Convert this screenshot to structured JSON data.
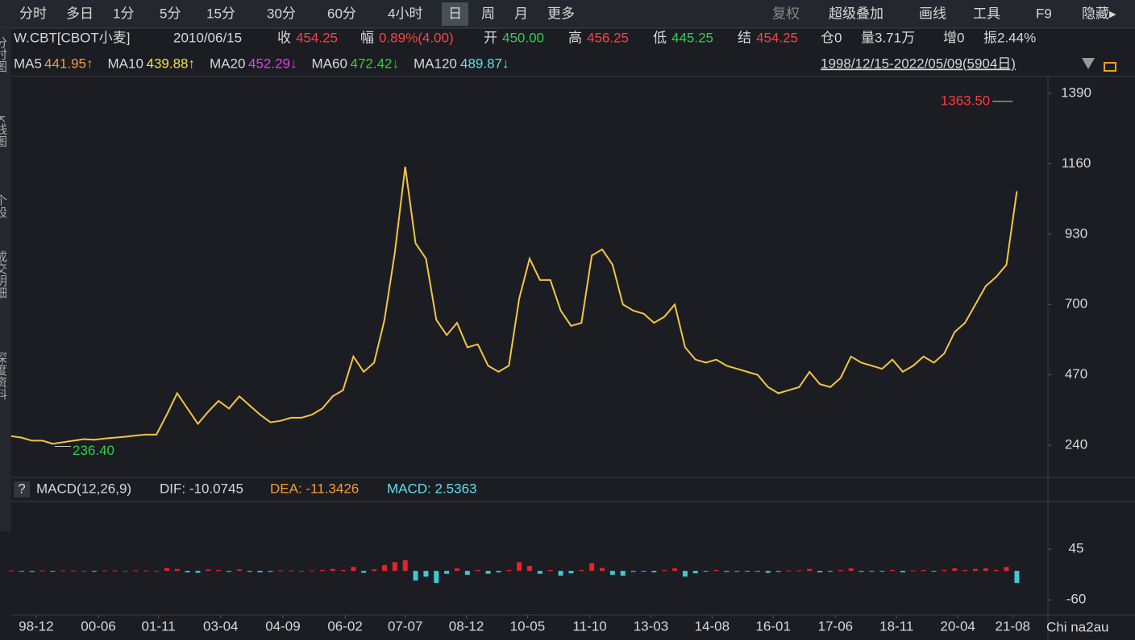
{
  "toolbar": {
    "left": [
      "分时",
      "多日",
      "1分",
      "5分",
      "15分",
      "30分",
      "60分",
      "4小时",
      "日",
      "周",
      "月",
      "更多"
    ],
    "selected": "日",
    "right": [
      "复权",
      "超级叠加",
      "画线",
      "工具",
      "F9",
      "隐藏▸"
    ]
  },
  "sidebar": [
    "分时图",
    "K线图",
    "个股",
    "成交明细",
    "深度资料"
  ],
  "info": {
    "symbol": "W.CBT[CBOT小麦]",
    "date": "2010/06/15",
    "close_label": "收",
    "close": "454.25",
    "change_label": "幅",
    "change": "0.89%(4.00)",
    "open_label": "开",
    "open": "450.00",
    "high_label": "高",
    "high": "456.25",
    "low_label": "低",
    "low": "445.25",
    "settle_label": "结",
    "settle": "454.25",
    "oi": "仓0",
    "volume": "量3.71万",
    "oi_change": "增0",
    "amplitude": "振2.44%"
  },
  "ma": [
    {
      "name": "MA5",
      "value": "441.95↑",
      "color": "#f39c32"
    },
    {
      "name": "MA10",
      "value": "439.88↑",
      "color": "#f5e23a"
    },
    {
      "name": "MA20",
      "value": "452.29↓",
      "color": "#e040e8"
    },
    {
      "name": "MA60",
      "value": "472.42↓",
      "color": "#3cc83c"
    },
    {
      "name": "MA120",
      "value": "489.87↓",
      "color": "#5fe0ee"
    }
  ],
  "range": "1998/12/15-2022/05/09(5904日)",
  "macd_header": {
    "help": "?",
    "name": "MACD(12,26,9)",
    "dif": "DIF: -10.0745",
    "dea": "DEA: -11.3426",
    "macd": "MACD: 2.5363"
  },
  "watermark": "Chi na2au",
  "chart_data": [
    {
      "type": "line",
      "xlim": [
        0,
        100
      ],
      "ylim": [
        143,
        1445
      ],
      "yticks": [
        240,
        470,
        700,
        930,
        1160,
        1390
      ],
      "xticks": [
        {
          "value": 2.4,
          "label": "98-12"
        },
        {
          "value": 8.4,
          "label": "00-06"
        },
        {
          "value": 14.2,
          "label": "01-11"
        },
        {
          "value": 20.2,
          "label": "03-04"
        },
        {
          "value": 26.2,
          "label": "04-09"
        },
        {
          "value": 32.2,
          "label": "06-02"
        },
        {
          "value": 38.0,
          "label": "07-07"
        },
        {
          "value": 43.9,
          "label": "08-12"
        },
        {
          "value": 49.8,
          "label": "10-05"
        },
        {
          "value": 55.8,
          "label": "11-10"
        },
        {
          "value": 61.7,
          "label": "13-03"
        },
        {
          "value": 67.6,
          "label": "14-08"
        },
        {
          "value": 73.5,
          "label": "16-01"
        },
        {
          "value": 79.5,
          "label": "17-06"
        },
        {
          "value": 85.4,
          "label": "18-11"
        },
        {
          "value": 91.3,
          "label": "20-04"
        },
        {
          "value": 96.6,
          "label": "21-08"
        }
      ],
      "annotations": [
        {
          "text": "1363.50",
          "x": 96.6,
          "value": 1363.5,
          "color": "#ff3b3b"
        },
        {
          "text": "236.40",
          "x": 4.2,
          "value": 236.4,
          "color": "#2fcf4a"
        }
      ],
      "series": [
        {
          "color": "#f5c542",
          "x": [
            0,
            1,
            2,
            3,
            4,
            5,
            6,
            7,
            8,
            9,
            10,
            11,
            12,
            13,
            14,
            15,
            16,
            17,
            18,
            19,
            20,
            21,
            22,
            23,
            24,
            25,
            26,
            27,
            28,
            29,
            30,
            31,
            32,
            33,
            34,
            35,
            36,
            37,
            38,
            39,
            40,
            41,
            42,
            43,
            44,
            45,
            46,
            47,
            48,
            49,
            50,
            51,
            52,
            53,
            54,
            55,
            56,
            57,
            58,
            59,
            60,
            61,
            62,
            63,
            64,
            65,
            66,
            67,
            68,
            69,
            70,
            71,
            72,
            73,
            74,
            75,
            76,
            77,
            78,
            79,
            80,
            81,
            82,
            83,
            84,
            85,
            86,
            87,
            88,
            89,
            90,
            91,
            92,
            93,
            94,
            95,
            96,
            97
          ],
          "values": [
            270,
            265,
            255,
            255,
            245,
            250,
            255,
            260,
            258,
            262,
            265,
            268,
            272,
            275,
            275,
            340,
            410,
            360,
            310,
            350,
            385,
            360,
            400,
            370,
            340,
            315,
            320,
            330,
            330,
            340,
            360,
            400,
            420,
            530,
            480,
            510,
            650,
            870,
            1150,
            900,
            850,
            650,
            600,
            640,
            560,
            570,
            500,
            480,
            500,
            720,
            850,
            780,
            780,
            680,
            630,
            640,
            860,
            880,
            830,
            700,
            680,
            670,
            640,
            660,
            700,
            560,
            520,
            510,
            520,
            500,
            490,
            480,
            470,
            430,
            410,
            420,
            430,
            480,
            440,
            430,
            460,
            530,
            510,
            500,
            490,
            520,
            480,
            500,
            530,
            510,
            540,
            610,
            640,
            700,
            760,
            790,
            830,
            1070
          ]
        }
      ]
    },
    {
      "type": "bar",
      "xlim": [
        0,
        100
      ],
      "ylim": [
        -88,
        140
      ],
      "yticks": [
        45,
        -60
      ],
      "colors": {
        "up": "#e8222e",
        "down": "#3ec8d4"
      },
      "x": [
        0,
        1,
        2,
        3,
        4,
        5,
        6,
        7,
        8,
        9,
        10,
        11,
        12,
        13,
        14,
        15,
        16,
        17,
        18,
        19,
        20,
        21,
        22,
        23,
        24,
        25,
        26,
        27,
        28,
        29,
        30,
        31,
        32,
        33,
        34,
        35,
        36,
        37,
        38,
        39,
        40,
        41,
        42,
        43,
        44,
        45,
        46,
        47,
        48,
        49,
        50,
        51,
        52,
        53,
        54,
        55,
        56,
        57,
        58,
        59,
        60,
        61,
        62,
        63,
        64,
        65,
        66,
        67,
        68,
        69,
        70,
        71,
        72,
        73,
        74,
        75,
        76,
        77,
        78,
        79,
        80,
        81,
        82,
        83,
        84,
        85,
        86,
        87,
        88,
        89,
        90,
        91,
        92,
        93,
        94,
        95,
        96,
        97
      ],
      "values": [
        1,
        -1,
        -2,
        1,
        -1,
        1,
        1,
        0,
        -1,
        1,
        1,
        0,
        1,
        1,
        0,
        6,
        4,
        -3,
        -4,
        3,
        2,
        -2,
        3,
        -2,
        -3,
        -2,
        1,
        1,
        0,
        1,
        2,
        4,
        2,
        8,
        -4,
        3,
        12,
        18,
        22,
        -20,
        -12,
        -25,
        -6,
        5,
        -8,
        2,
        -6,
        -3,
        2,
        18,
        10,
        -6,
        2,
        -10,
        -5,
        2,
        16,
        6,
        -8,
        -10,
        -2,
        -1,
        -3,
        2,
        5,
        -12,
        -5,
        -1,
        2,
        -2,
        -1,
        -1,
        -1,
        -4,
        -2,
        1,
        1,
        4,
        -3,
        -1,
        2,
        5,
        -2,
        -1,
        -1,
        2,
        -3,
        1,
        2,
        -1,
        2,
        5,
        2,
        4,
        5,
        2,
        8,
        -25
      ]
    }
  ]
}
